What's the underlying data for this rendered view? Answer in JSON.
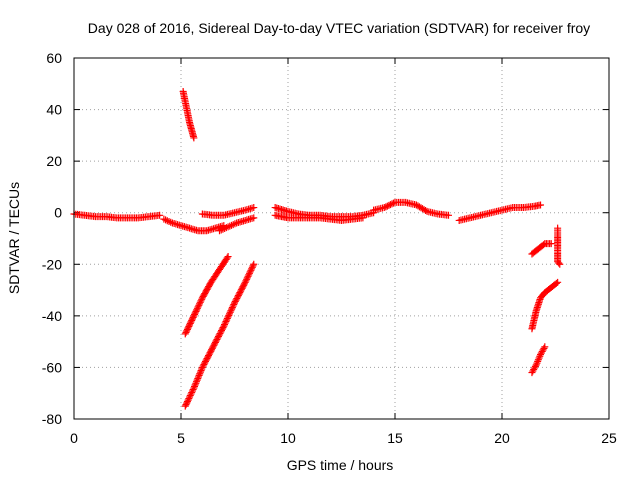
{
  "chart_data": {
    "type": "scatter",
    "title": "Day 028 of 2016, Sidereal Day-to-day VTEC variation (SDTVAR) for receiver froy",
    "xlabel": "GPS time / hours",
    "ylabel": "SDTVAR / TECUs",
    "xlim": [
      0,
      25
    ],
    "ylim": [
      -80,
      60
    ],
    "xticks": [
      "0",
      "5",
      "10",
      "15",
      "20",
      "25"
    ],
    "xtick_values": [
      0,
      5,
      10,
      15,
      20,
      25
    ],
    "yticks": [
      "60",
      "40",
      "20",
      "0",
      "-20",
      "-40",
      "-60",
      "-80"
    ],
    "ytick_values": [
      60,
      40,
      20,
      0,
      -20,
      -40,
      -60,
      -80
    ],
    "grid": true,
    "legend": "none",
    "marker": "plus",
    "color": "#ff0000",
    "series": [
      {
        "x": [
          0.0,
          0.5,
          1.0,
          1.5,
          2.0,
          2.5,
          3.0,
          3.5,
          4.0
        ],
        "y": [
          -0.5,
          -1.0,
          -1.5,
          -1.5,
          -2.0,
          -2.0,
          -2.0,
          -1.5,
          -1.0
        ]
      },
      {
        "x": [
          4.2,
          4.6,
          5.0,
          5.4,
          5.8,
          6.2,
          6.6,
          7.0
        ],
        "y": [
          -2.5,
          -4.0,
          -5.0,
          -6.0,
          -7.0,
          -7.0,
          -6.0,
          -5.0
        ]
      },
      {
        "x": [
          6.0,
          6.5,
          7.0,
          7.5,
          8.0,
          8.4
        ],
        "y": [
          -0.5,
          -1.0,
          -1.0,
          0.0,
          1.0,
          2.0
        ]
      },
      {
        "x": [
          6.8,
          7.2,
          7.6,
          8.0,
          8.4
        ],
        "y": [
          -7.0,
          -5.5,
          -4.0,
          -3.0,
          -2.0
        ]
      },
      {
        "x": [
          5.1,
          5.2,
          5.3,
          5.4,
          5.5,
          5.6
        ],
        "y": [
          47.0,
          43.0,
          39.0,
          35.0,
          32.0,
          29.0
        ]
      },
      {
        "x": [
          5.2,
          5.6,
          6.0,
          6.4,
          6.8,
          7.2
        ],
        "y": [
          -47.0,
          -40.0,
          -33.0,
          -27.0,
          -22.0,
          -17.0
        ]
      },
      {
        "x": [
          5.2,
          5.6,
          6.0,
          6.5,
          7.0,
          7.5,
          8.0,
          8.4
        ],
        "y": [
          -75.0,
          -68.0,
          -60.0,
          -52.0,
          -44.0,
          -35.0,
          -27.0,
          -20.0
        ]
      },
      {
        "x": [
          9.4,
          10.0,
          10.5,
          11.0,
          11.5,
          12.0,
          12.5,
          13.0,
          13.5,
          14.0
        ],
        "y": [
          2.0,
          0.5,
          -0.5,
          -1.0,
          -1.0,
          -1.5,
          -1.5,
          -1.5,
          -1.0,
          0.0
        ]
      },
      {
        "x": [
          9.4,
          10.0,
          10.5,
          11.0,
          11.5,
          12.0,
          12.5,
          13.0,
          13.5
        ],
        "y": [
          -1.0,
          -2.0,
          -2.0,
          -2.0,
          -2.0,
          -2.5,
          -3.0,
          -2.5,
          -2.0
        ]
      },
      {
        "x": [
          14.0,
          14.5,
          15.0,
          15.5,
          16.0,
          16.5,
          17.0,
          17.5
        ],
        "y": [
          1.0,
          2.0,
          4.0,
          4.0,
          3.0,
          0.5,
          -0.5,
          -1.0
        ]
      },
      {
        "x": [
          18.0,
          18.5,
          19.0,
          19.5,
          20.0,
          20.5,
          21.0,
          21.5,
          21.8
        ],
        "y": [
          -3.0,
          -2.0,
          -1.0,
          0.0,
          1.0,
          2.0,
          2.0,
          2.5,
          3.0
        ]
      },
      {
        "x": [
          21.4,
          21.7,
          22.0,
          22.3
        ],
        "y": [
          -16.0,
          -14.0,
          -12.0,
          -12.0
        ]
      },
      {
        "x": [
          21.4,
          21.6,
          21.8,
          22.0,
          22.3,
          22.6
        ],
        "y": [
          -45.0,
          -38.0,
          -33.0,
          -31.0,
          -29.0,
          -27.0
        ]
      },
      {
        "x": [
          21.4,
          21.6,
          21.8,
          22.0
        ],
        "y": [
          -62.0,
          -59.0,
          -55.0,
          -52.0
        ]
      },
      {
        "x": [
          22.6,
          22.6,
          22.6,
          22.7
        ],
        "y": [
          -6.0,
          -9.0,
          -19.0,
          -20.0
        ]
      }
    ]
  }
}
